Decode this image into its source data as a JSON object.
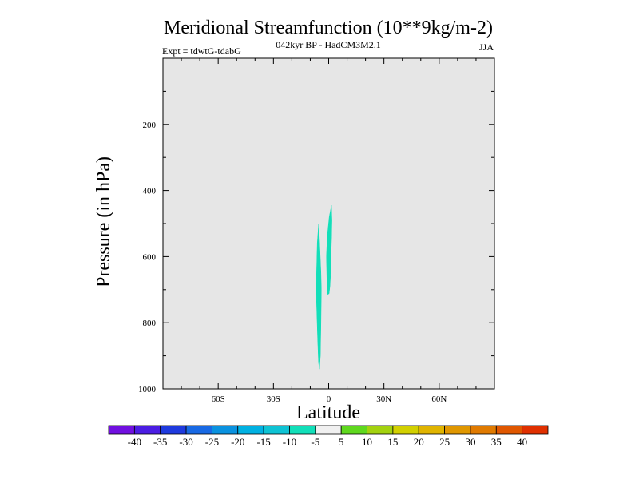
{
  "chart_data": {
    "type": "contour",
    "title": "Meridional Streamfunction (10**9kg/m-2)",
    "subtitle": "042kyr BP - HadCM3M2.1",
    "experiment_label": "Expt = tdwtG-tdabG",
    "season_label": "JJA",
    "xlabel": "Latitude",
    "ylabel": "Pressure (in hPa)",
    "xlim": [
      -90,
      90
    ],
    "ylim": [
      0,
      1000
    ],
    "y_inverted": true,
    "x_ticks": [
      {
        "value": -60,
        "label": "60S"
      },
      {
        "value": -30,
        "label": "30S"
      },
      {
        "value": 0,
        "label": "0"
      },
      {
        "value": 30,
        "label": "30N"
      },
      {
        "value": 60,
        "label": "60N"
      }
    ],
    "y_ticks": [
      {
        "value": 200,
        "label": "200"
      },
      {
        "value": 400,
        "label": "400"
      },
      {
        "value": 600,
        "label": "600"
      },
      {
        "value": 800,
        "label": "800"
      },
      {
        "value": 1000,
        "label": "1000"
      }
    ],
    "background_color": "#e6e6e6",
    "filled_regions": [
      {
        "name": "region-a",
        "level_range": [
          -10,
          -5
        ],
        "color": "#11dfb9",
        "outline": [
          [
            -5.5,
            505
          ],
          [
            -6.2,
            560
          ],
          [
            -6.8,
            700
          ],
          [
            -6.0,
            850
          ],
          [
            -5.5,
            920
          ],
          [
            -5.0,
            940
          ],
          [
            -4.5,
            900
          ],
          [
            -4.2,
            800
          ],
          [
            -4.0,
            700
          ],
          [
            -4.2,
            650
          ],
          [
            -4.6,
            600
          ],
          [
            -5.0,
            550
          ],
          [
            -5.4,
            500
          ]
        ]
      },
      {
        "name": "region-b",
        "level_range": [
          -10,
          -5
        ],
        "color": "#11dfb9",
        "outline": [
          [
            1.5,
            445
          ],
          [
            0.3,
            480
          ],
          [
            -0.8,
            540
          ],
          [
            -1.2,
            600
          ],
          [
            -1.0,
            660
          ],
          [
            -0.8,
            715
          ],
          [
            0.2,
            712
          ],
          [
            0.7,
            690
          ],
          [
            1.1,
            650
          ],
          [
            1.3,
            590
          ],
          [
            1.6,
            540
          ],
          [
            1.8,
            490
          ]
        ]
      }
    ],
    "colorbar": {
      "colors": [
        "#7110e0",
        "#4b1de3",
        "#1e3ade",
        "#1869e4",
        "#0a92e0",
        "#00b1e2",
        "#0ec3d4",
        "#11dfb9",
        "#f0f0f0",
        "#5fd81e",
        "#a3d20f",
        "#d2d000",
        "#e0b400",
        "#e09700",
        "#e07a00",
        "#e05700",
        "#e03000"
      ],
      "labels": [
        "-40",
        "-35",
        "-30",
        "-25",
        "-20",
        "-15",
        "-10",
        "-5",
        "5",
        "10",
        "15",
        "20",
        "25",
        "30",
        "35",
        "40"
      ]
    }
  }
}
